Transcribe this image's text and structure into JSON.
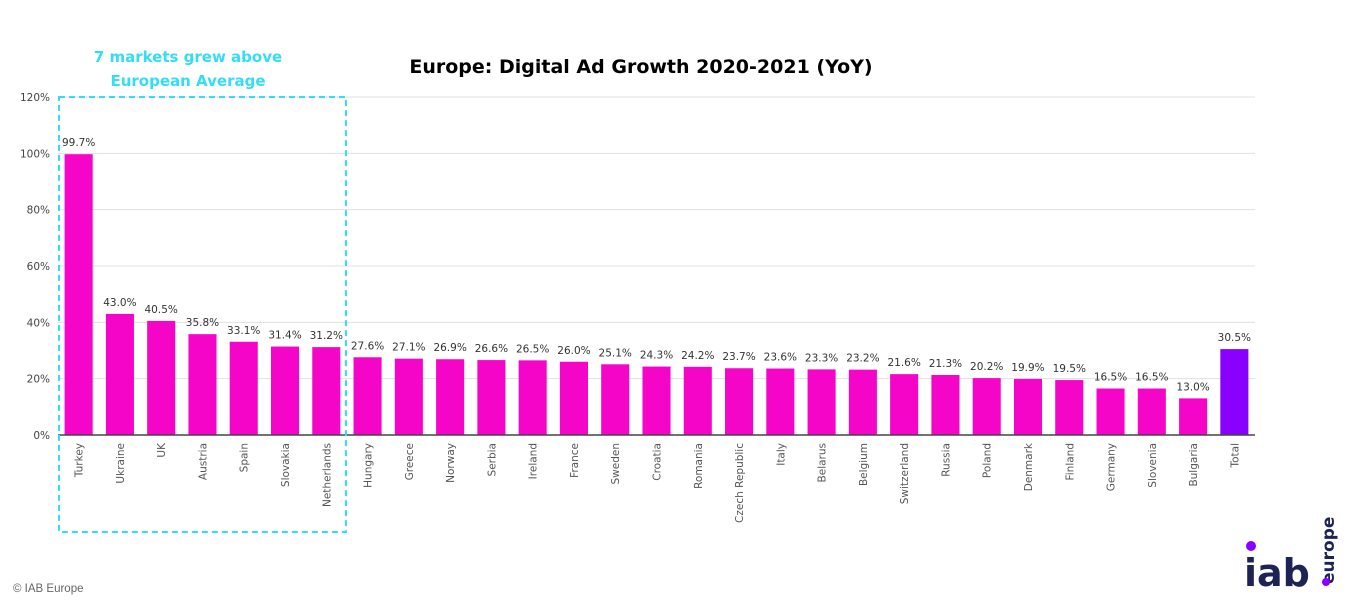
{
  "chart_data": {
    "type": "bar",
    "title": "Europe: Digital Ad Growth 2020-2021 (YoY)",
    "xlabel": "",
    "ylabel": "",
    "ylim": [
      0,
      120
    ],
    "yticks": [
      0,
      20,
      40,
      60,
      80,
      100,
      120
    ],
    "ytick_labels": [
      "0%",
      "20%",
      "40%",
      "60%",
      "80%",
      "100%",
      "120%"
    ],
    "grid": true,
    "categories": [
      "Turkey",
      "Ukraine",
      "UK",
      "Austria",
      "Spain",
      "Slovakia",
      "Netherlands",
      "Hungary",
      "Greece",
      "Norway",
      "Serbia",
      "Ireland",
      "France",
      "Sweden",
      "Croatia",
      "Romania",
      "Czech Republic",
      "Italy",
      "Belarus",
      "Belgium",
      "Switzerland",
      "Russia",
      "Poland",
      "Denmark",
      "Finland",
      "Germany",
      "Slovenia",
      "Bulgaria",
      "Total"
    ],
    "values": [
      99.7,
      43.0,
      40.5,
      35.8,
      33.1,
      31.4,
      31.2,
      27.6,
      27.1,
      26.9,
      26.6,
      26.5,
      26.0,
      25.1,
      24.3,
      24.2,
      23.7,
      23.6,
      23.3,
      23.2,
      21.6,
      21.3,
      20.2,
      19.9,
      19.5,
      16.5,
      16.5,
      13.0,
      30.5
    ],
    "data_labels": [
      "99.7%",
      "43.0%",
      "40.5%",
      "35.8%",
      "33.1%",
      "31.4%",
      "31.2%",
      "27.6%",
      "27.1%",
      "26.9%",
      "26.6%",
      "26.5%",
      "26.0%",
      "25.1%",
      "24.3%",
      "24.2%",
      "23.7%",
      "23.6%",
      "23.3%",
      "23.2%",
      "21.6%",
      "21.3%",
      "20.2%",
      "19.9%",
      "19.5%",
      "16.5%",
      "16.5%",
      "13.0%",
      "30.5%"
    ],
    "colors": {
      "bar": "#f505c8",
      "total_bar": "#8a00ff",
      "callout": "#33ddf5",
      "grid": "#e0e0e0",
      "axis": "#444444"
    },
    "annotation": {
      "text_lines": [
        "7 markets grew above",
        "European Average"
      ],
      "highlight_count": 7
    }
  },
  "footer": {
    "copyright": "© IAB Europe"
  },
  "logo": {
    "main": "iab",
    "sub": "europe"
  }
}
